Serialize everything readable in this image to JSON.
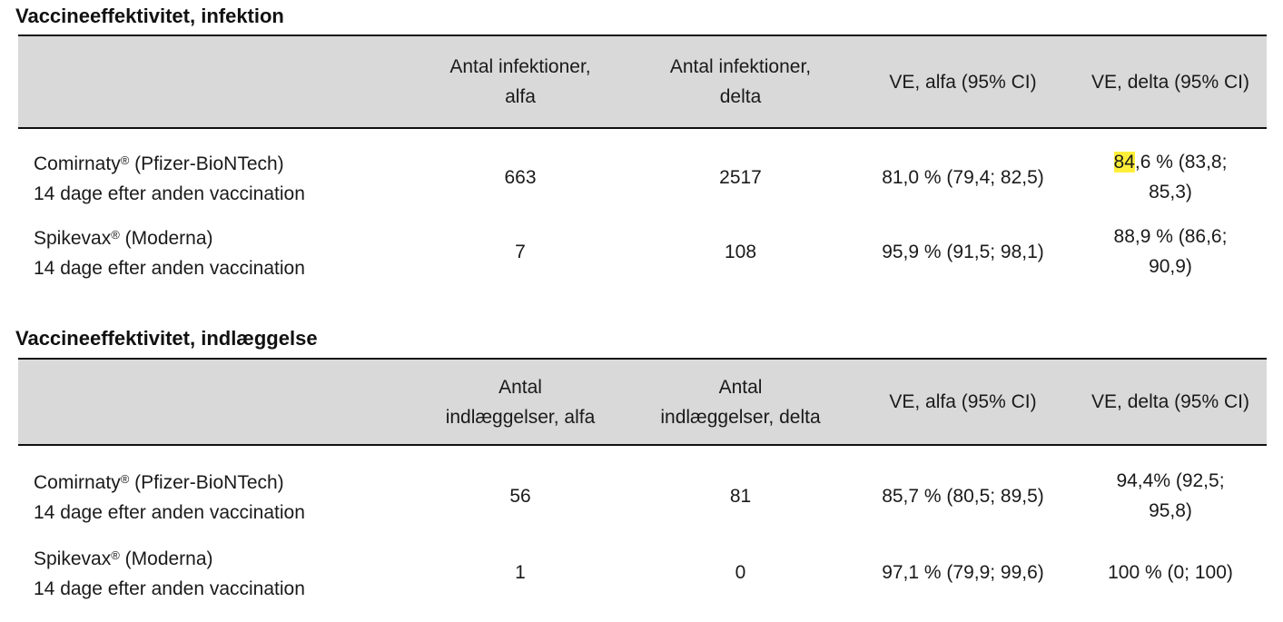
{
  "infection": {
    "title": "Vaccineeffektivitet, infektion",
    "headers": [
      "",
      "Antal infektioner,\nalfa",
      "Antal infektioner,\ndelta",
      "VE, alfa (95% CI)",
      "VE, delta (95% CI)"
    ],
    "rows": [
      {
        "name": "Comirnaty",
        "reg": "®",
        "maker": " (Pfizer-BioNTech)",
        "timing": "14 dage efter anden vaccination",
        "alfa_count": "663",
        "delta_count": "2517",
        "ve_alfa": "81,0 % (79,4; 82,5)",
        "ve_delta_highlight": "84",
        "ve_delta_rest1": ",6 % (83,8;",
        "ve_delta_rest2": "85,3)"
      },
      {
        "name": "Spikevax",
        "reg": "®",
        "maker": " (Moderna)",
        "timing": "14 dage efter anden vaccination",
        "alfa_count": "7",
        "delta_count": "108",
        "ve_alfa": "95,9 % (91,5; 98,1)",
        "ve_delta_1": "88,9 % (86,6;",
        "ve_delta_2": "90,9)"
      }
    ]
  },
  "hospital": {
    "title": "Vaccineeffektivitet, indlæggelse",
    "headers": [
      "",
      "Antal\nindlæggelser, alfa",
      "Antal\nindlæggelser, delta",
      "VE, alfa (95% CI)",
      "VE, delta (95% CI)"
    ],
    "rows": [
      {
        "name": "Comirnaty",
        "reg": "®",
        "maker": " (Pfizer-BioNTech)",
        "timing": "14 dage efter anden vaccination",
        "alfa_count": "56",
        "delta_count": "81",
        "ve_alfa": "85,7 % (80,5; 89,5)",
        "ve_delta_1": "94,4% (92,5;",
        "ve_delta_2": "95,8)"
      },
      {
        "name": "Spikevax",
        "reg": "®",
        "maker": " (Moderna)",
        "timing": "14 dage efter anden vaccination",
        "alfa_count": "1",
        "delta_count": "0",
        "ve_alfa": "97,1 % (79,9; 99,6)",
        "ve_delta": "100 % (0; 100)"
      }
    ]
  },
  "colors": {
    "header_bg": "#d9d9d9",
    "highlight": "#ffef3a",
    "rule": "#111111"
  }
}
